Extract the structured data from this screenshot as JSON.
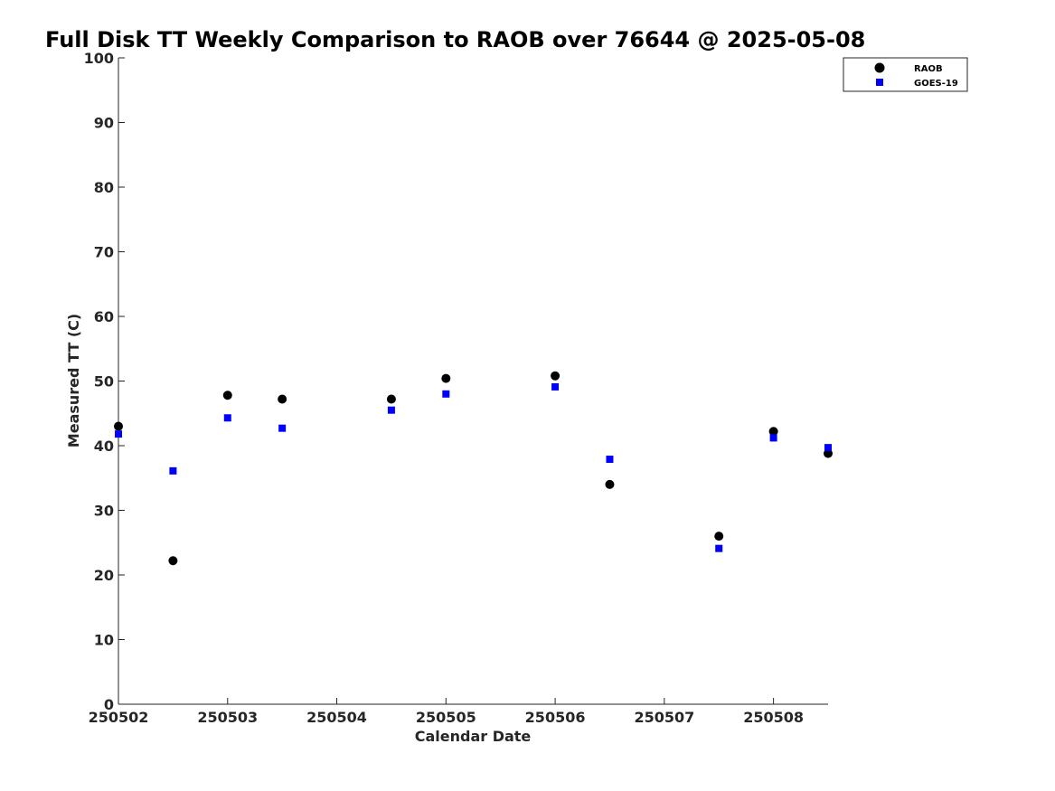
{
  "chart_data": {
    "type": "scatter",
    "title": "Full Disk TT Weekly Comparison to RAOB over 76644 @ 2025-05-08",
    "xlabel": "Calendar Date",
    "ylabel": "Measured TT (C)",
    "xlim": [
      0,
      6.5
    ],
    "ylim": [
      0,
      100
    ],
    "x_ticks": [
      0,
      1,
      2,
      3,
      4,
      5,
      6
    ],
    "x_tick_labels": [
      "250502",
      "250503",
      "250504",
      "250505",
      "250506",
      "250507",
      "250508"
    ],
    "y_ticks": [
      0,
      10,
      20,
      30,
      40,
      50,
      60,
      70,
      80,
      90,
      100
    ],
    "y_tick_labels": [
      "0",
      "10",
      "20",
      "30",
      "40",
      "50",
      "60",
      "70",
      "80",
      "90",
      "100"
    ],
    "legend_position": "top-right",
    "series": [
      {
        "name": "RAOB",
        "marker": "circle",
        "color": "#000000",
        "x": [
          0,
          0.5,
          1,
          1.5,
          2.5,
          3,
          4,
          4.5,
          5.5,
          6,
          6.5
        ],
        "values": [
          43,
          22.2,
          47.8,
          47.2,
          47.2,
          50.4,
          50.8,
          34,
          26,
          42.2,
          38.8
        ]
      },
      {
        "name": "GOES-19",
        "marker": "square",
        "color": "#0000ff",
        "x": [
          0,
          0.5,
          1,
          1.5,
          2.5,
          3,
          4,
          4.5,
          5.5,
          6,
          6.5
        ],
        "values": [
          41.8,
          36.1,
          44.3,
          42.7,
          45.5,
          48,
          49.1,
          37.9,
          24.1,
          41.2,
          39.7
        ]
      }
    ]
  }
}
